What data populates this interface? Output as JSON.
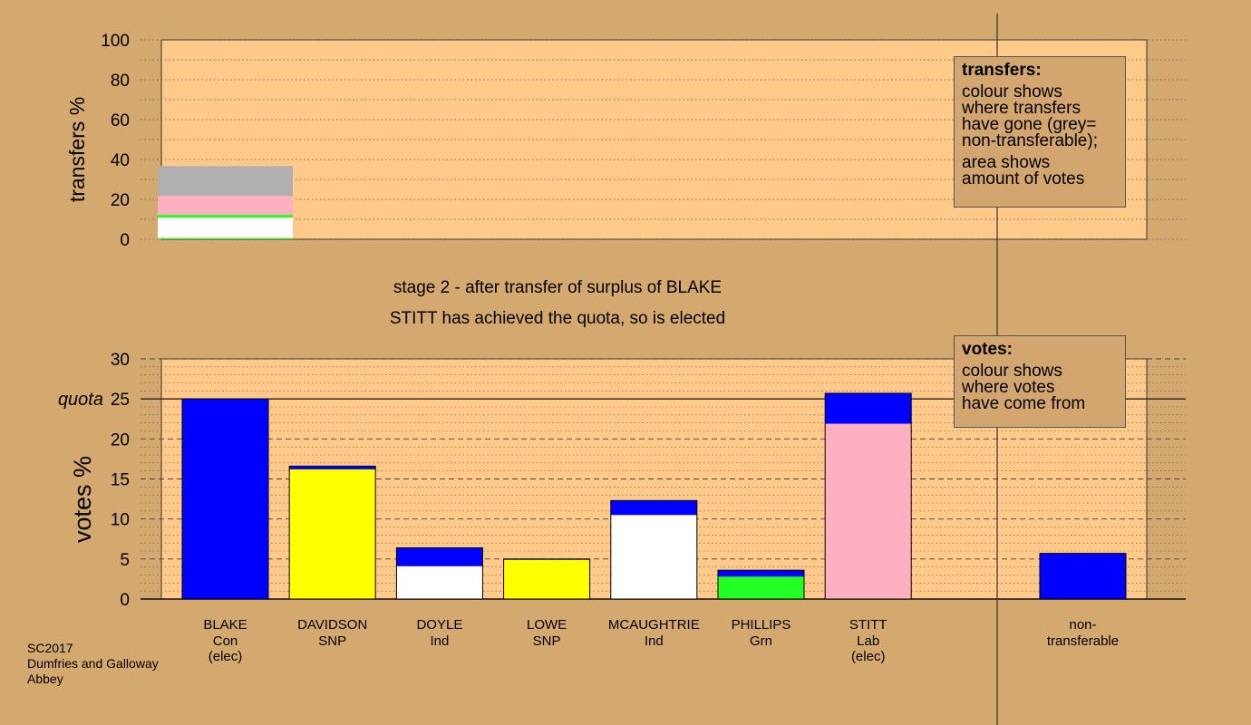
{
  "footer": {
    "line1": "SC2017",
    "line2": "Dumfries and Galloway",
    "line3": "Abbey"
  },
  "status": {
    "stage": "stage 2 - after transfer of surplus of BLAKE",
    "elected": "STITT has achieved the quota, so is elected"
  },
  "legends": {
    "transfers": {
      "title": "transfers:",
      "lines": [
        "colour shows",
        "where transfers",
        "have gone (grey=",
        "non-transferable);"
      ],
      "lines2": [
        "area shows",
        "amount of votes"
      ]
    },
    "votes": {
      "title": "votes:",
      "lines": [
        "colour shows",
        "where votes",
        "have come from"
      ]
    }
  },
  "colors": {
    "background": "#d4a970",
    "plot_area": "#ffc98a",
    "Con": "#0000ff",
    "SNP": "#ffff00",
    "Ind": "#ffffff",
    "Grn": "#22ff22",
    "Lab": "#ffb0c0",
    "nontransferable": "#b0b0b0"
  },
  "chart_data": [
    {
      "type": "bar",
      "subtype": "stacked",
      "ylabel": "transfers %",
      "ylim": [
        0,
        100
      ],
      "ticks": [
        0,
        20,
        40,
        60,
        80,
        100
      ],
      "grid": "dotted",
      "bar_label": "BLAKE",
      "segments": [
        {
          "party": "Grn",
          "value": 0.6
        },
        {
          "party": "Ind",
          "value": 1.4
        },
        {
          "party": "Ind",
          "value": 8.8
        },
        {
          "party": "Grn",
          "value": 1.4
        },
        {
          "party": "Lab",
          "value": 9.6
        },
        {
          "party": "nontransferable",
          "value": 14.9
        }
      ]
    },
    {
      "type": "bar",
      "subtype": "stacked",
      "ylabel": "votes %",
      "ylim": [
        0,
        30
      ],
      "ticks": [
        0,
        5,
        10,
        15,
        20,
        25,
        30
      ],
      "quota": 25,
      "quota_label": "quota",
      "grid": "dashed",
      "categories": [
        {
          "name": "BLAKE",
          "party": "Con",
          "note": "(elec)",
          "segments": [
            {
              "color": "Con",
              "value": 25.0
            }
          ]
        },
        {
          "name": "DAVIDSON",
          "party": "SNP",
          "note": "",
          "segments": [
            {
              "color": "SNP",
              "value": 16.2
            },
            {
              "color": "Con",
              "value": 0.4
            }
          ]
        },
        {
          "name": "DOYLE",
          "party": "Ind",
          "note": "",
          "segments": [
            {
              "color": "Ind",
              "value": 4.1
            },
            {
              "color": "Con",
              "value": 2.3
            }
          ]
        },
        {
          "name": "LOWE",
          "party": "SNP",
          "note": "",
          "segments": [
            {
              "color": "SNP",
              "value": 4.9
            },
            {
              "color": "Con",
              "value": 0.1
            }
          ]
        },
        {
          "name": "MCAUGHTRIE",
          "party": "Ind",
          "note": "",
          "segments": [
            {
              "color": "Ind",
              "value": 10.5
            },
            {
              "color": "Con",
              "value": 1.8
            }
          ]
        },
        {
          "name": "PHILLIPS",
          "party": "Grn",
          "note": "",
          "segments": [
            {
              "color": "Grn",
              "value": 2.8
            },
            {
              "color": "Con",
              "value": 0.8
            }
          ]
        },
        {
          "name": "STITT",
          "party": "Lab",
          "note": "(elec)",
          "segments": [
            {
              "color": "Lab",
              "value": 21.9
            },
            {
              "color": "Con",
              "value": 3.8
            }
          ]
        }
      ],
      "nontransferable": {
        "label1": "non-",
        "label2": "transferable",
        "value": 5.7,
        "color": "Con"
      }
    }
  ]
}
